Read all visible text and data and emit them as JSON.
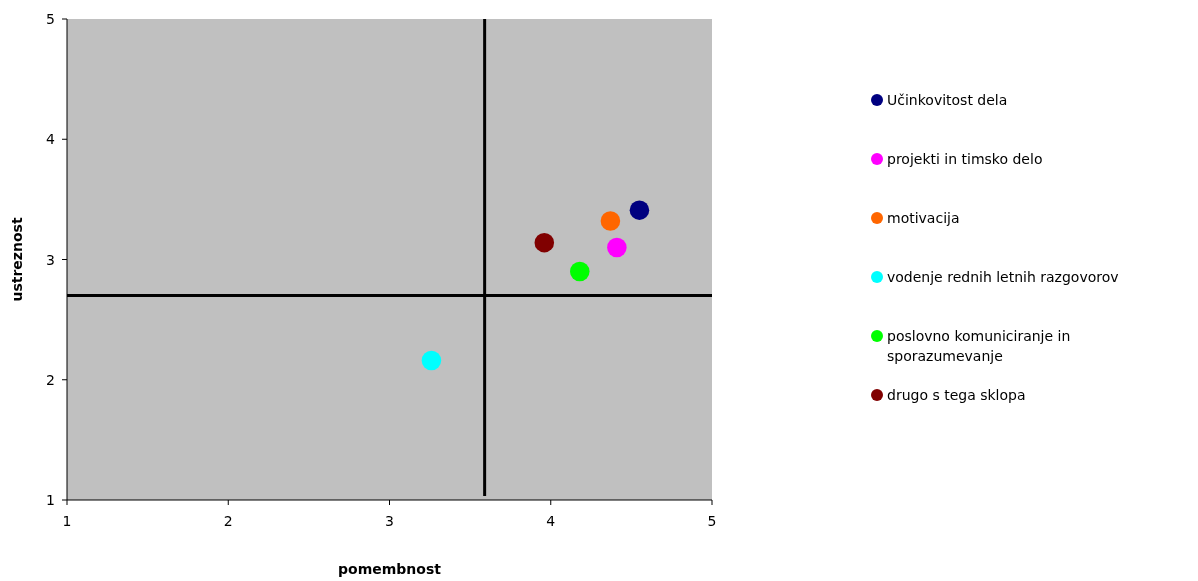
{
  "chart_data": {
    "type": "scatter",
    "xlabel": "pomembnost",
    "ylabel": "ustreznost",
    "xlim": [
      1,
      5
    ],
    "ylim": [
      1,
      5
    ],
    "xticks": [
      1,
      2,
      3,
      4,
      5
    ],
    "yticks": [
      1,
      2,
      3,
      4,
      5
    ],
    "grid": false,
    "legend": "right",
    "marker": "circle",
    "series": [
      {
        "name": "Učinkovitost dela",
        "color": "#000080",
        "x": [
          4.55
        ],
        "values": [
          3.41
        ]
      },
      {
        "name": "projekti in timsko delo",
        "color": "#ff00ff",
        "x": [
          4.41
        ],
        "values": [
          3.1
        ]
      },
      {
        "name": "motivacija",
        "color": "#ff6600",
        "x": [
          4.37
        ],
        "values": [
          3.32
        ]
      },
      {
        "name": "vodenje rednih letnih razgovorov",
        "color": "#00ffff",
        "x": [
          3.26
        ],
        "values": [
          2.16
        ]
      },
      {
        "name": "poslovno komuniciranje in sporazumevanje",
        "color": "#00ff00",
        "x": [
          4.18
        ],
        "values": [
          2.9
        ]
      },
      {
        "name": "drugo s tega sklopa",
        "color": "#800000",
        "x": [
          3.96
        ],
        "values": [
          3.14
        ]
      }
    ],
    "ref_lines": [
      {
        "axis": "x",
        "value": 3.59,
        "color": "#000000"
      },
      {
        "axis": "y",
        "value": 2.7,
        "color": "#000000"
      }
    ]
  }
}
